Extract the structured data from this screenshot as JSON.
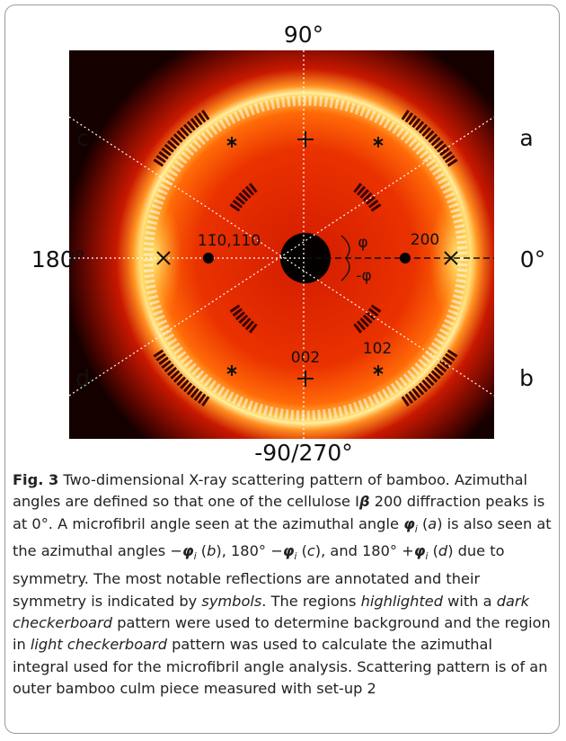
{
  "figure": {
    "axis_labels": {
      "top": "90°",
      "bottom": "-90/270°",
      "left": "180°",
      "right": "0°"
    },
    "line_labels": {
      "a": "a",
      "b": "b",
      "c": "c",
      "d": "d"
    },
    "annotations": {
      "r110": "11̄0,110",
      "r200": "200",
      "r002": "002",
      "r102": "102",
      "phi": "φ",
      "minus_phi": "-φ"
    }
  },
  "caption": {
    "label": "Fig. 3",
    "parts": [
      "  Two-dimensional X-ray scattering pattern of bamboo. Azimuthal angles are defined so that one of the cellulose I",
      "β",
      " 200 diffraction peaks is at 0°. A microfibril angle seen at the azimuthal angle ",
      "φ",
      "i",
      " (",
      "a",
      ") is also seen at the azimuthal angles −",
      "φ",
      "i",
      " (",
      "b",
      "), 180° −",
      "φ",
      "i",
      " (",
      "c",
      "), and 180° +",
      "φ",
      "i",
      " (",
      "d",
      ") due to symmetry. The most notable reflections are annotated and their symmetry is indicated by ",
      "symbols",
      ". The regions ",
      "highlighted",
      " with a ",
      "dark checkerboard",
      " pattern were used to determine background and the region in ",
      "light checkerboard",
      " pattern was used to calculate the azimuthal integral used for the microfibril angle analysis. Scattering pattern is of an outer bamboo culm piece measured with set-up 2"
    ]
  }
}
